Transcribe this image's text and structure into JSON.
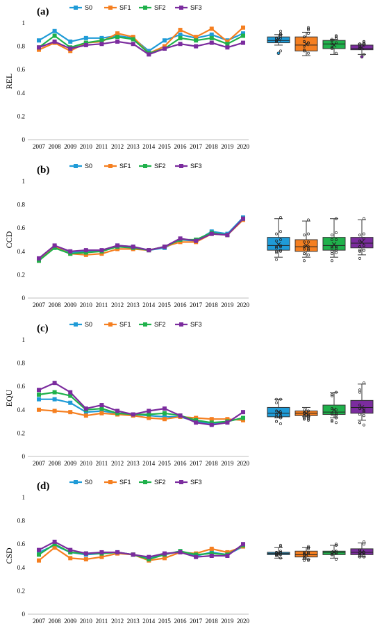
{
  "colors": {
    "S0": "#1f9bd7",
    "SF1": "#f57f20",
    "SF2": "#1fb14b",
    "SF3": "#7b2c9e"
  },
  "chart_data": [
    {
      "type": "line",
      "panel_label": "(a)",
      "ylabel": "REL",
      "ylim": [
        0,
        1
      ],
      "yticks": [
        "0",
        "0.2",
        "0.4",
        "0.6",
        "0.8",
        "1"
      ],
      "x": [
        "2007",
        "2008",
        "2009",
        "2010",
        "2011",
        "2012",
        "2013",
        "2014",
        "2015",
        "2016",
        "2017",
        "2018",
        "2019",
        "2020"
      ],
      "series": [
        {
          "name": "S0",
          "values": [
            0.85,
            0.93,
            0.84,
            0.87,
            0.87,
            0.89,
            0.87,
            0.76,
            0.85,
            0.9,
            0.87,
            0.9,
            0.85,
            0.91
          ]
        },
        {
          "name": "SF1",
          "values": [
            0.77,
            0.83,
            0.76,
            0.83,
            0.84,
            0.91,
            0.88,
            0.74,
            0.8,
            0.94,
            0.88,
            0.95,
            0.84,
            0.96
          ]
        },
        {
          "name": "SF2",
          "values": [
            0.79,
            0.89,
            0.79,
            0.83,
            0.85,
            0.88,
            0.86,
            0.74,
            0.78,
            0.87,
            0.85,
            0.87,
            0.82,
            0.89
          ]
        },
        {
          "name": "SF3",
          "values": [
            0.79,
            0.84,
            0.78,
            0.81,
            0.82,
            0.84,
            0.82,
            0.73,
            0.78,
            0.82,
            0.8,
            0.83,
            0.79,
            0.83
          ]
        }
      ],
      "boxplots": [
        {
          "name": "S0",
          "min": 0.81,
          "q1": 0.83,
          "median": 0.85,
          "q3": 0.88,
          "max": 0.9,
          "mean": 0.86,
          "outliers": [
            0.74
          ]
        },
        {
          "name": "SF1",
          "min": 0.72,
          "q1": 0.76,
          "median": 0.81,
          "q3": 0.88,
          "max": 0.92,
          "mean": 0.82,
          "outliers": []
        },
        {
          "name": "SF2",
          "min": 0.73,
          "q1": 0.78,
          "median": 0.82,
          "q3": 0.85,
          "max": 0.86,
          "mean": 0.81,
          "outliers": []
        },
        {
          "name": "SF3",
          "min": 0.73,
          "q1": 0.77,
          "median": 0.78,
          "q3": 0.81,
          "max": 0.82,
          "mean": 0.79,
          "outliers": [
            0.71
          ]
        }
      ]
    },
    {
      "type": "line",
      "panel_label": "(b)",
      "ylabel": "CCD",
      "ylim": [
        0,
        1
      ],
      "yticks": [
        "0",
        "0.2",
        "0.4",
        "0.6",
        "0.8",
        "1"
      ],
      "x": [
        "2007",
        "2008",
        "2009",
        "2010",
        "2011",
        "2012",
        "2013",
        "2014",
        "2015",
        "2016",
        "2017",
        "2018",
        "2019",
        "2020"
      ],
      "series": [
        {
          "name": "S0",
          "values": [
            0.33,
            0.44,
            0.39,
            0.4,
            0.4,
            0.45,
            0.44,
            0.41,
            0.43,
            0.5,
            0.49,
            0.57,
            0.55,
            0.69
          ]
        },
        {
          "name": "SF1",
          "values": [
            0.32,
            0.44,
            0.38,
            0.37,
            0.38,
            0.42,
            0.42,
            0.41,
            0.44,
            0.48,
            0.48,
            0.55,
            0.54,
            0.67
          ]
        },
        {
          "name": "SF2",
          "values": [
            0.32,
            0.43,
            0.38,
            0.39,
            0.4,
            0.44,
            0.43,
            0.41,
            0.44,
            0.5,
            0.5,
            0.56,
            0.54,
            0.68
          ]
        },
        {
          "name": "SF3",
          "values": [
            0.34,
            0.45,
            0.4,
            0.41,
            0.41,
            0.45,
            0.44,
            0.41,
            0.44,
            0.51,
            0.49,
            0.55,
            0.54,
            0.68
          ]
        }
      ],
      "boxplots": [
        {
          "name": "S0",
          "min": 0.35,
          "q1": 0.41,
          "median": 0.45,
          "q3": 0.52,
          "max": 0.68,
          "mean": 0.46,
          "outliers": []
        },
        {
          "name": "SF1",
          "min": 0.35,
          "q1": 0.4,
          "median": 0.44,
          "q3": 0.5,
          "max": 0.66,
          "mean": 0.45,
          "outliers": []
        },
        {
          "name": "SF2",
          "min": 0.35,
          "q1": 0.41,
          "median": 0.45,
          "q3": 0.52,
          "max": 0.68,
          "mean": 0.46,
          "outliers": []
        },
        {
          "name": "SF3",
          "min": 0.37,
          "q1": 0.43,
          "median": 0.47,
          "q3": 0.52,
          "max": 0.67,
          "mean": 0.48,
          "outliers": []
        }
      ]
    },
    {
      "type": "line",
      "panel_label": "(c)",
      "ylabel": "EQU",
      "ylim": [
        0,
        1
      ],
      "yticks": [
        "0",
        "0.2",
        "0.4",
        "0.6",
        "0.8",
        "1"
      ],
      "x": [
        "2007",
        "2008",
        "2009",
        "2010",
        "2011",
        "2012",
        "2013",
        "2014",
        "2015",
        "2016",
        "2017",
        "2018",
        "2019",
        "2020"
      ],
      "series": [
        {
          "name": "S0",
          "values": [
            0.49,
            0.49,
            0.46,
            0.38,
            0.39,
            0.37,
            0.36,
            0.35,
            0.34,
            0.34,
            0.3,
            0.28,
            0.3,
            0.33
          ]
        },
        {
          "name": "SF1",
          "values": [
            0.4,
            0.39,
            0.38,
            0.35,
            0.37,
            0.36,
            0.35,
            0.33,
            0.32,
            0.34,
            0.33,
            0.32,
            0.32,
            0.31
          ]
        },
        {
          "name": "SF2",
          "values": [
            0.53,
            0.55,
            0.52,
            0.4,
            0.41,
            0.37,
            0.36,
            0.36,
            0.37,
            0.35,
            0.31,
            0.29,
            0.3,
            0.33
          ]
        },
        {
          "name": "SF3",
          "values": [
            0.57,
            0.63,
            0.55,
            0.41,
            0.44,
            0.39,
            0.36,
            0.39,
            0.41,
            0.35,
            0.29,
            0.27,
            0.29,
            0.38
          ]
        }
      ],
      "boxplots": [
        {
          "name": "S0",
          "min": 0.33,
          "q1": 0.34,
          "median": 0.37,
          "q3": 0.42,
          "max": 0.49,
          "mean": 0.38,
          "outliers": []
        },
        {
          "name": "SF1",
          "min": 0.34,
          "q1": 0.35,
          "median": 0.37,
          "q3": 0.39,
          "max": 0.42,
          "mean": 0.37,
          "outliers": []
        },
        {
          "name": "SF2",
          "min": 0.33,
          "q1": 0.36,
          "median": 0.38,
          "q3": 0.44,
          "max": 0.55,
          "mean": 0.4,
          "outliers": []
        },
        {
          "name": "SF3",
          "min": 0.31,
          "q1": 0.37,
          "median": 0.42,
          "q3": 0.48,
          "max": 0.62,
          "mean": 0.42,
          "outliers": []
        }
      ]
    },
    {
      "type": "line",
      "panel_label": "(d)",
      "ylabel": "CSD",
      "ylim": [
        0,
        1
      ],
      "yticks": [
        "0",
        "0.2",
        "0.4",
        "0.6",
        "0.8",
        "1"
      ],
      "x": [
        "2007",
        "2008",
        "2009",
        "2010",
        "2011",
        "2012",
        "2013",
        "2014",
        "2015",
        "2016",
        "2017",
        "2018",
        "2019",
        "2020"
      ],
      "series": [
        {
          "name": "S0",
          "values": [
            0.53,
            0.59,
            0.53,
            0.51,
            0.52,
            0.53,
            0.51,
            0.48,
            0.51,
            0.54,
            0.5,
            0.53,
            0.51,
            0.58
          ]
        },
        {
          "name": "SF1",
          "values": [
            0.46,
            0.57,
            0.48,
            0.47,
            0.49,
            0.52,
            0.51,
            0.46,
            0.48,
            0.53,
            0.52,
            0.56,
            0.53,
            0.58
          ]
        },
        {
          "name": "SF2",
          "values": [
            0.51,
            0.6,
            0.53,
            0.52,
            0.52,
            0.53,
            0.51,
            0.47,
            0.51,
            0.54,
            0.51,
            0.52,
            0.51,
            0.59
          ]
        },
        {
          "name": "SF3",
          "values": [
            0.55,
            0.62,
            0.55,
            0.52,
            0.53,
            0.53,
            0.51,
            0.49,
            0.52,
            0.53,
            0.49,
            0.5,
            0.5,
            0.6
          ]
        }
      ],
      "boxplots": [
        {
          "name": "S0",
          "min": 0.48,
          "q1": 0.51,
          "median": 0.52,
          "q3": 0.53,
          "max": 0.57,
          "mean": 0.52,
          "outliers": []
        },
        {
          "name": "SF1",
          "min": 0.47,
          "q1": 0.49,
          "median": 0.51,
          "q3": 0.54,
          "max": 0.57,
          "mean": 0.51,
          "outliers": []
        },
        {
          "name": "SF2",
          "min": 0.48,
          "q1": 0.51,
          "median": 0.53,
          "q3": 0.54,
          "max": 0.59,
          "mean": 0.53,
          "outliers": []
        },
        {
          "name": "SF3",
          "min": 0.49,
          "q1": 0.51,
          "median": 0.53,
          "q3": 0.56,
          "max": 0.61,
          "mean": 0.53,
          "outliers": []
        }
      ]
    }
  ]
}
